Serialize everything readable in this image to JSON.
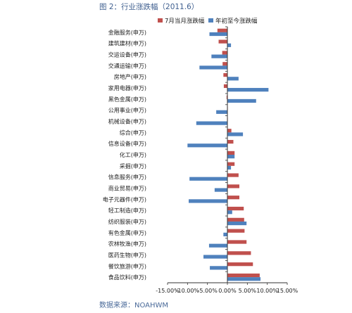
{
  "figure": {
    "title": "图 2：行业涨跌幅（2011.6）",
    "source": "数据来源：NOAHWM"
  },
  "colors": {
    "series1": "#c0504d",
    "series2": "#4f81bd"
  },
  "chart_data": {
    "type": "bar",
    "orientation": "horizontal",
    "categories": [
      "金融服务(申万)",
      "建筑建材(申万)",
      "交运设备(申万)",
      "交通运输(申万)",
      "房地产(申万)",
      "家用电器(申万)",
      "黑色金属(申万)",
      "公用事业(申万)",
      "机械设备(申万)",
      "综合(申万)",
      "信息设备(申万)",
      "化工(申万)",
      "采掘(申万)",
      "信息服务(申万)",
      "商业贸易(申万)",
      "电子元器件(申万)",
      "轻工制造(申万)",
      "纺织服装(申万)",
      "有色金属(申万)",
      "农林牧渔(申万)",
      "医药生物(申万)",
      "餐饮旅游(申万)",
      "食品饮料(申万)"
    ],
    "series": [
      {
        "name": "7月当月涨跌幅",
        "values": [
          -2.5,
          -2.2,
          -1.3,
          -1.2,
          -1.0,
          -0.9,
          -0.2,
          0.0,
          0.0,
          1.0,
          1.5,
          1.8,
          1.8,
          2.8,
          3.0,
          3.0,
          4.1,
          4.2,
          4.3,
          4.8,
          5.9,
          6.4,
          8.1
        ]
      },
      {
        "name": "年初至今涨跌幅",
        "values": [
          -4.5,
          0.9,
          -4.0,
          -7.0,
          2.8,
          10.3,
          7.2,
          -2.8,
          -7.8,
          3.9,
          -10.0,
          1.8,
          0.9,
          -9.5,
          -3.2,
          -9.7,
          1.2,
          4.8,
          -1.0,
          -4.6,
          -6.0,
          -4.4,
          8.3
        ]
      }
    ],
    "xlim": [
      -15,
      15
    ],
    "xticks": [
      -15,
      -10,
      -5,
      0,
      5,
      10,
      15
    ],
    "xtick_labels": [
      "-15.00%",
      "-10.00%",
      "-5.00%",
      "0.00%",
      "5.00%",
      "10.00%",
      "15.00%"
    ],
    "legend_position": "top",
    "grid": false
  }
}
